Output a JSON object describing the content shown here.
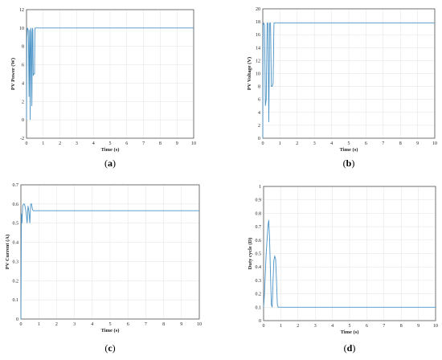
{
  "chart_data": [
    {
      "type": "line",
      "caption": "a",
      "xlabel": "Time (s)",
      "ylabel": "PV Power (W)",
      "xlim": [
        0,
        10
      ],
      "ylim": [
        -2,
        12
      ],
      "xticks": [
        "0",
        "1",
        "2",
        "3",
        "4",
        "5",
        "6",
        "7",
        "8",
        "9",
        "10"
      ],
      "yticks": [
        "-2",
        "0",
        "2",
        "4",
        "6",
        "8",
        "10",
        "12"
      ],
      "grid": true,
      "line_color": "#4a93c6",
      "x": [
        0,
        0.02,
        0.05,
        0.1,
        0.12,
        0.15,
        0.18,
        0.2,
        0.22,
        0.25,
        0.28,
        0.3,
        0.32,
        0.35,
        0.38,
        0.4,
        0.42,
        0.45,
        0.48,
        0.5,
        0.52,
        0.55,
        0.58,
        0.6,
        0.62,
        0.65,
        0.7,
        0.75,
        0.8,
        10
      ],
      "y": [
        0,
        9,
        10,
        9.8,
        8,
        2.5,
        9.8,
        7.5,
        0,
        10,
        9.5,
        5,
        1.5,
        10,
        9.8,
        4.8,
        5,
        5,
        5,
        9.8,
        10,
        10,
        10,
        10,
        10,
        10,
        10,
        10,
        10,
        10
      ]
    },
    {
      "type": "line",
      "caption": "b",
      "xlabel": "Time (s)",
      "ylabel": "PV Voltage (V)",
      "xlim": [
        0,
        10
      ],
      "ylim": [
        0,
        20
      ],
      "xticks": [
        "0",
        "1",
        "2",
        "3",
        "4",
        "5",
        "6",
        "7",
        "8",
        "9",
        "10"
      ],
      "yticks": [
        "0",
        "2",
        "4",
        "6",
        "8",
        "10",
        "12",
        "14",
        "16",
        "18",
        "20"
      ],
      "grid": true,
      "line_color": "#4a93c6",
      "x": [
        0,
        0.02,
        0.05,
        0.1,
        0.15,
        0.2,
        0.25,
        0.3,
        0.35,
        0.4,
        0.45,
        0.5,
        0.55,
        0.6,
        0.65,
        0.7,
        0.75,
        0.8,
        10
      ],
      "y": [
        0,
        17.5,
        17.8,
        17.5,
        5,
        6,
        17.8,
        17.8,
        2.5,
        17.8,
        17.8,
        8,
        8,
        8.5,
        17.8,
        17.8,
        17.8,
        17.8,
        17.8
      ]
    },
    {
      "type": "line",
      "caption": "c",
      "xlabel": "Time (s)",
      "ylabel": "PV Current (A)",
      "xlim": [
        0,
        10
      ],
      "ylim": [
        0,
        0.7
      ],
      "xticks": [
        "0",
        "1",
        "2",
        "3",
        "4",
        "5",
        "6",
        "7",
        "8",
        "9",
        "10"
      ],
      "yticks": [
        "0",
        "0.1",
        "0.2",
        "0.3",
        "0.4",
        "0.5",
        "0.6",
        "0.7"
      ],
      "grid": true,
      "line_color": "#4a93c6",
      "x": [
        0,
        0.03,
        0.06,
        0.1,
        0.15,
        0.2,
        0.25,
        0.3,
        0.35,
        0.4,
        0.45,
        0.5,
        0.55,
        0.6,
        0.65,
        0.7,
        0.75,
        0.8,
        10
      ],
      "y": [
        0,
        0.55,
        0.5,
        0.59,
        0.6,
        0.6,
        0.58,
        0.55,
        0.5,
        0.59,
        0.56,
        0.5,
        0.6,
        0.6,
        0.57,
        0.565,
        0.565,
        0.565,
        0.565
      ]
    },
    {
      "type": "line",
      "caption": "d",
      "xlabel": "Time (s)",
      "ylabel": "Duty cycle (D)",
      "xlim": [
        0,
        10
      ],
      "ylim": [
        0,
        1
      ],
      "xticks": [
        "0",
        "1",
        "2",
        "3",
        "4",
        "5",
        "6",
        "7",
        "8",
        "9",
        "10"
      ],
      "yticks": [
        "0",
        "0.1",
        "0.2",
        "0.3",
        "0.4",
        "0.5",
        "0.6",
        "0.7",
        "0.8",
        "0.9",
        "1"
      ],
      "grid": true,
      "line_color": "#4a93c6",
      "x": [
        0,
        0.05,
        0.1,
        0.15,
        0.2,
        0.25,
        0.3,
        0.35,
        0.4,
        0.45,
        0.5,
        0.55,
        0.6,
        0.65,
        0.7,
        0.75,
        0.8,
        0.85,
        0.9,
        10
      ],
      "y": [
        0.1,
        0.2,
        0.35,
        0.5,
        0.6,
        0.7,
        0.75,
        0.6,
        0.35,
        0.12,
        0.1,
        0.3,
        0.45,
        0.48,
        0.46,
        0.3,
        0.12,
        0.1,
        0.1,
        0.1
      ]
    }
  ]
}
